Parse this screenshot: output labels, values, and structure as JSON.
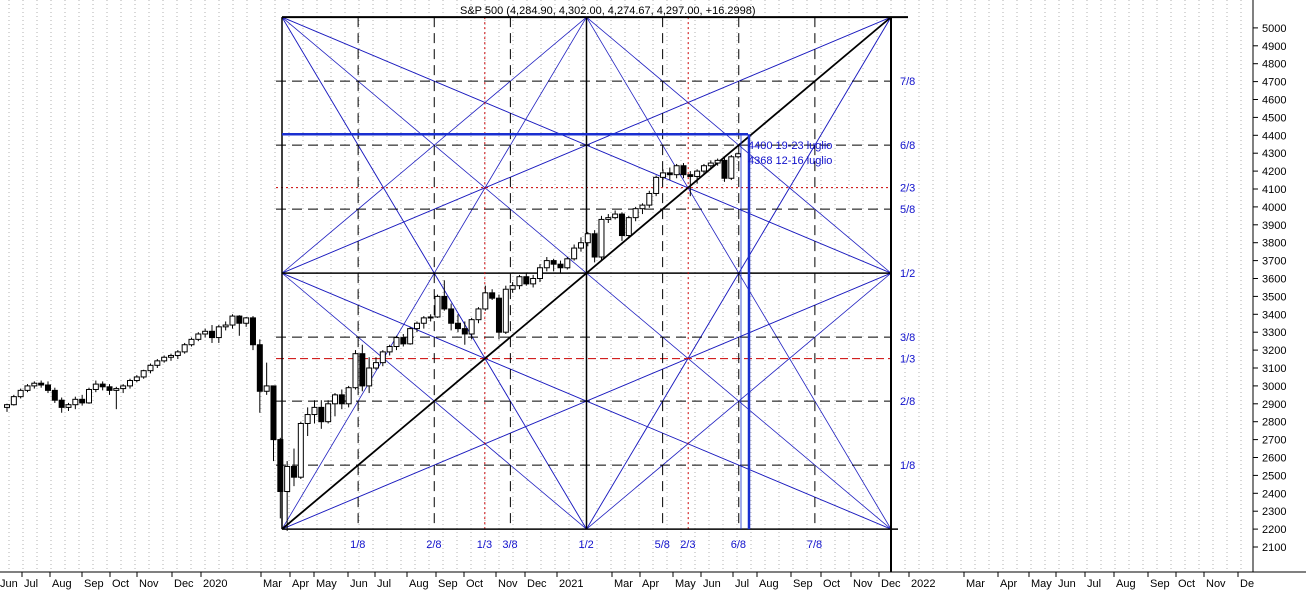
{
  "chart_data": {
    "type": "candlestick",
    "title": "S&P 500 (4,284.90, 4,302.00, 4,274.67, 4,297.00, +16.2998)",
    "instrument": "S&P 500",
    "quote": {
      "open": 4284.9,
      "high": 4302.0,
      "low": 4274.67,
      "close": 4297.0,
      "change": 16.2998
    },
    "y_axis": {
      "position": "right",
      "range": [
        2000,
        5100
      ],
      "tick_labels": [
        "2100",
        "2200",
        "2300",
        "2400",
        "2500",
        "2600",
        "2700",
        "2800",
        "2900",
        "3000",
        "3100",
        "3200",
        "3300",
        "3400",
        "3500",
        "3600",
        "3700",
        "3800",
        "3900",
        "4000",
        "4100",
        "4200",
        "4300",
        "4400",
        "4500",
        "4600",
        "4700",
        "4800",
        "4900",
        "5000"
      ]
    },
    "x_axis": {
      "tick_labels": [
        "Jun",
        "Jul",
        "Aug",
        "Sep",
        "Oct",
        "Nov",
        "Dec",
        "2020",
        "Mar",
        "Apr",
        "May",
        "Jun",
        "Jul",
        "Aug",
        "Sep",
        "Oct",
        "Nov",
        "Dec",
        "2021",
        "Mar",
        "Apr",
        "May",
        "Jun",
        "Jul",
        "Aug",
        "Sep",
        "Oct",
        "Nov",
        "Dec",
        "2022",
        "Mar",
        "Apr",
        "May",
        "Jun",
        "Jul",
        "Aug",
        "Sep",
        "Oct",
        "Nov",
        "De"
      ]
    },
    "weekly_bars": [
      [
        2880,
        2900,
        2855,
        2895
      ],
      [
        2895,
        2950,
        2890,
        2940
      ],
      [
        2940,
        2985,
        2930,
        2975
      ],
      [
        2975,
        3010,
        2965,
        3000
      ],
      [
        3000,
        3025,
        2985,
        3015
      ],
      [
        3015,
        3030,
        2990,
        3005
      ],
      [
        3005,
        3025,
        2960,
        2975
      ],
      [
        2975,
        2990,
        2905,
        2920
      ],
      [
        2920,
        2935,
        2850,
        2880
      ],
      [
        2880,
        2905,
        2860,
        2895
      ],
      [
        2895,
        2940,
        2870,
        2925
      ],
      [
        2925,
        2950,
        2890,
        2905
      ],
      [
        2905,
        2990,
        2900,
        2980
      ],
      [
        2980,
        3030,
        2965,
        3010
      ],
      [
        3010,
        3025,
        2975,
        2995
      ],
      [
        2995,
        3010,
        2950,
        2975
      ],
      [
        2975,
        2995,
        2870,
        2985
      ],
      [
        2985,
        3010,
        2960,
        3000
      ],
      [
        3000,
        3040,
        2985,
        3030
      ],
      [
        3030,
        3060,
        3020,
        3050
      ],
      [
        3050,
        3090,
        3040,
        3085
      ],
      [
        3085,
        3125,
        3070,
        3115
      ],
      [
        3115,
        3150,
        3100,
        3140
      ],
      [
        3140,
        3170,
        3130,
        3160
      ],
      [
        3160,
        3180,
        3140,
        3170
      ],
      [
        3170,
        3200,
        3150,
        3190
      ],
      [
        3190,
        3240,
        3180,
        3230
      ],
      [
        3230,
        3270,
        3220,
        3260
      ],
      [
        3260,
        3300,
        3250,
        3290
      ],
      [
        3290,
        3320,
        3270,
        3305
      ],
      [
        3305,
        3340,
        3240,
        3270
      ],
      [
        3270,
        3340,
        3240,
        3330
      ],
      [
        3330,
        3360,
        3310,
        3340
      ],
      [
        3340,
        3400,
        3320,
        3390
      ],
      [
        3390,
        3395,
        3280,
        3350
      ],
      [
        3350,
        3385,
        3330,
        3380
      ],
      [
        3380,
        3390,
        3200,
        3230
      ],
      [
        3230,
        3260,
        2850,
        2970
      ],
      [
        2970,
        3130,
        2950,
        3000
      ],
      [
        3000,
        3000,
        2580,
        2700
      ],
      [
        2700,
        2710,
        2260,
        2410
      ],
      [
        2410,
        2580,
        2190,
        2550
      ],
      [
        2550,
        2650,
        2440,
        2490
      ],
      [
        2490,
        2800,
        2480,
        2790
      ],
      [
        2790,
        2880,
        2720,
        2840
      ],
      [
        2840,
        2920,
        2790,
        2880
      ],
      [
        2880,
        2920,
        2760,
        2800
      ],
      [
        2800,
        2920,
        2790,
        2900
      ],
      [
        2900,
        2960,
        2830,
        2950
      ],
      [
        2950,
        2980,
        2870,
        2900
      ],
      [
        2900,
        3000,
        2880,
        2990
      ],
      [
        2990,
        3200,
        2980,
        3180
      ],
      [
        3180,
        3230,
        2970,
        3000
      ],
      [
        3000,
        3160,
        2960,
        3100
      ],
      [
        3100,
        3160,
        3090,
        3130
      ],
      [
        3130,
        3200,
        3110,
        3190
      ],
      [
        3190,
        3230,
        3170,
        3220
      ],
      [
        3220,
        3280,
        3200,
        3270
      ],
      [
        3270,
        3290,
        3220,
        3235
      ],
      [
        3235,
        3330,
        3230,
        3320
      ],
      [
        3320,
        3360,
        3300,
        3350
      ],
      [
        3350,
        3390,
        3320,
        3380
      ],
      [
        3380,
        3400,
        3360,
        3385
      ],
      [
        3385,
        3510,
        3380,
        3500
      ],
      [
        3500,
        3590,
        3420,
        3430
      ],
      [
        3430,
        3460,
        3310,
        3350
      ],
      [
        3350,
        3400,
        3300,
        3320
      ],
      [
        3320,
        3360,
        3230,
        3290
      ],
      [
        3290,
        3380,
        3260,
        3370
      ],
      [
        3370,
        3440,
        3350,
        3430
      ],
      [
        3430,
        3560,
        3420,
        3520
      ],
      [
        3520,
        3540,
        3480,
        3490
      ],
      [
        3490,
        3510,
        3260,
        3300
      ],
      [
        3300,
        3560,
        3290,
        3540
      ],
      [
        3540,
        3580,
        3520,
        3560
      ],
      [
        3560,
        3620,
        3540,
        3610
      ],
      [
        3610,
        3630,
        3560,
        3570
      ],
      [
        3570,
        3620,
        3550,
        3600
      ],
      [
        3600,
        3680,
        3580,
        3660
      ],
      [
        3660,
        3720,
        3640,
        3700
      ],
      [
        3700,
        3710,
        3640,
        3680
      ],
      [
        3680,
        3700,
        3630,
        3660
      ],
      [
        3660,
        3720,
        3650,
        3710
      ],
      [
        3710,
        3790,
        3700,
        3770
      ],
      [
        3770,
        3830,
        3750,
        3800
      ],
      [
        3800,
        3860,
        3780,
        3850
      ],
      [
        3850,
        3870,
        3690,
        3720
      ],
      [
        3720,
        3950,
        3700,
        3930
      ],
      [
        3930,
        3960,
        3910,
        3940
      ],
      [
        3940,
        3980,
        3930,
        3960
      ],
      [
        3960,
        3970,
        3810,
        3840
      ],
      [
        3840,
        3950,
        3830,
        3940
      ],
      [
        3940,
        4000,
        3920,
        3990
      ],
      [
        3990,
        4020,
        3960,
        4010
      ],
      [
        4010,
        4090,
        3995,
        4075
      ],
      [
        4075,
        4175,
        4060,
        4165
      ],
      [
        4165,
        4210,
        4150,
        4190
      ],
      [
        4190,
        4220,
        4150,
        4180
      ],
      [
        4180,
        4240,
        4160,
        4230
      ],
      [
        4230,
        4245,
        4160,
        4180
      ],
      [
        4180,
        4200,
        4060,
        4170
      ],
      [
        4170,
        4210,
        4130,
        4200
      ],
      [
        4200,
        4240,
        4180,
        4230
      ],
      [
        4230,
        4260,
        4210,
        4245
      ],
      [
        4245,
        4270,
        4230,
        4260
      ],
      [
        4260,
        4280,
        4140,
        4160
      ],
      [
        4160,
        4290,
        4150,
        4280
      ],
      [
        4280,
        4300,
        4270,
        4297
      ]
    ],
    "gann_square": {
      "time_start": "2020-03-23",
      "time_end": "2021-12-31",
      "price_low": 2200,
      "price_high": 5060,
      "horizontal_divisions": [
        {
          "fraction": 0.125,
          "label": "1/8"
        },
        {
          "fraction": 0.25,
          "label": "2/8"
        },
        {
          "fraction": 0.333,
          "label": "1/3"
        },
        {
          "fraction": 0.375,
          "label": "3/8"
        },
        {
          "fraction": 0.5,
          "label": "1/2"
        },
        {
          "fraction": 0.625,
          "label": "5/8"
        },
        {
          "fraction": 0.667,
          "label": "2/3"
        },
        {
          "fraction": 0.75,
          "label": "6/8"
        },
        {
          "fraction": 0.875,
          "label": "7/8"
        }
      ],
      "vertical_divisions": [
        {
          "fraction": 0.125,
          "label": "1/8"
        },
        {
          "fraction": 0.25,
          "label": "2/8"
        },
        {
          "fraction": 0.333,
          "label": "1/3"
        },
        {
          "fraction": 0.375,
          "label": "3/8"
        },
        {
          "fraction": 0.5,
          "label": "1/2"
        },
        {
          "fraction": 0.625,
          "label": "5/8"
        },
        {
          "fraction": 0.667,
          "label": "2/3"
        },
        {
          "fraction": 0.75,
          "label": "6/8"
        },
        {
          "fraction": 0.875,
          "label": "7/8"
        }
      ]
    },
    "annotations": [
      {
        "text": "4400  19-23 luglio",
        "price": 4400
      },
      {
        "text": "4368 12-16 luglio",
        "price": 4368
      }
    ],
    "target_price": 4400,
    "grid": true,
    "colors": {
      "background": "#ffffff",
      "candle_up": "#ffffff",
      "candle_down": "#000000",
      "gann_diagonals": "#2020c0",
      "frame": "#000000",
      "division_lines": "#000000",
      "third_lines_red": "#cc0000",
      "grid": "#b0b0b0",
      "labels_blue": "#1010cc",
      "target_lines": "#1a2fd0"
    }
  }
}
